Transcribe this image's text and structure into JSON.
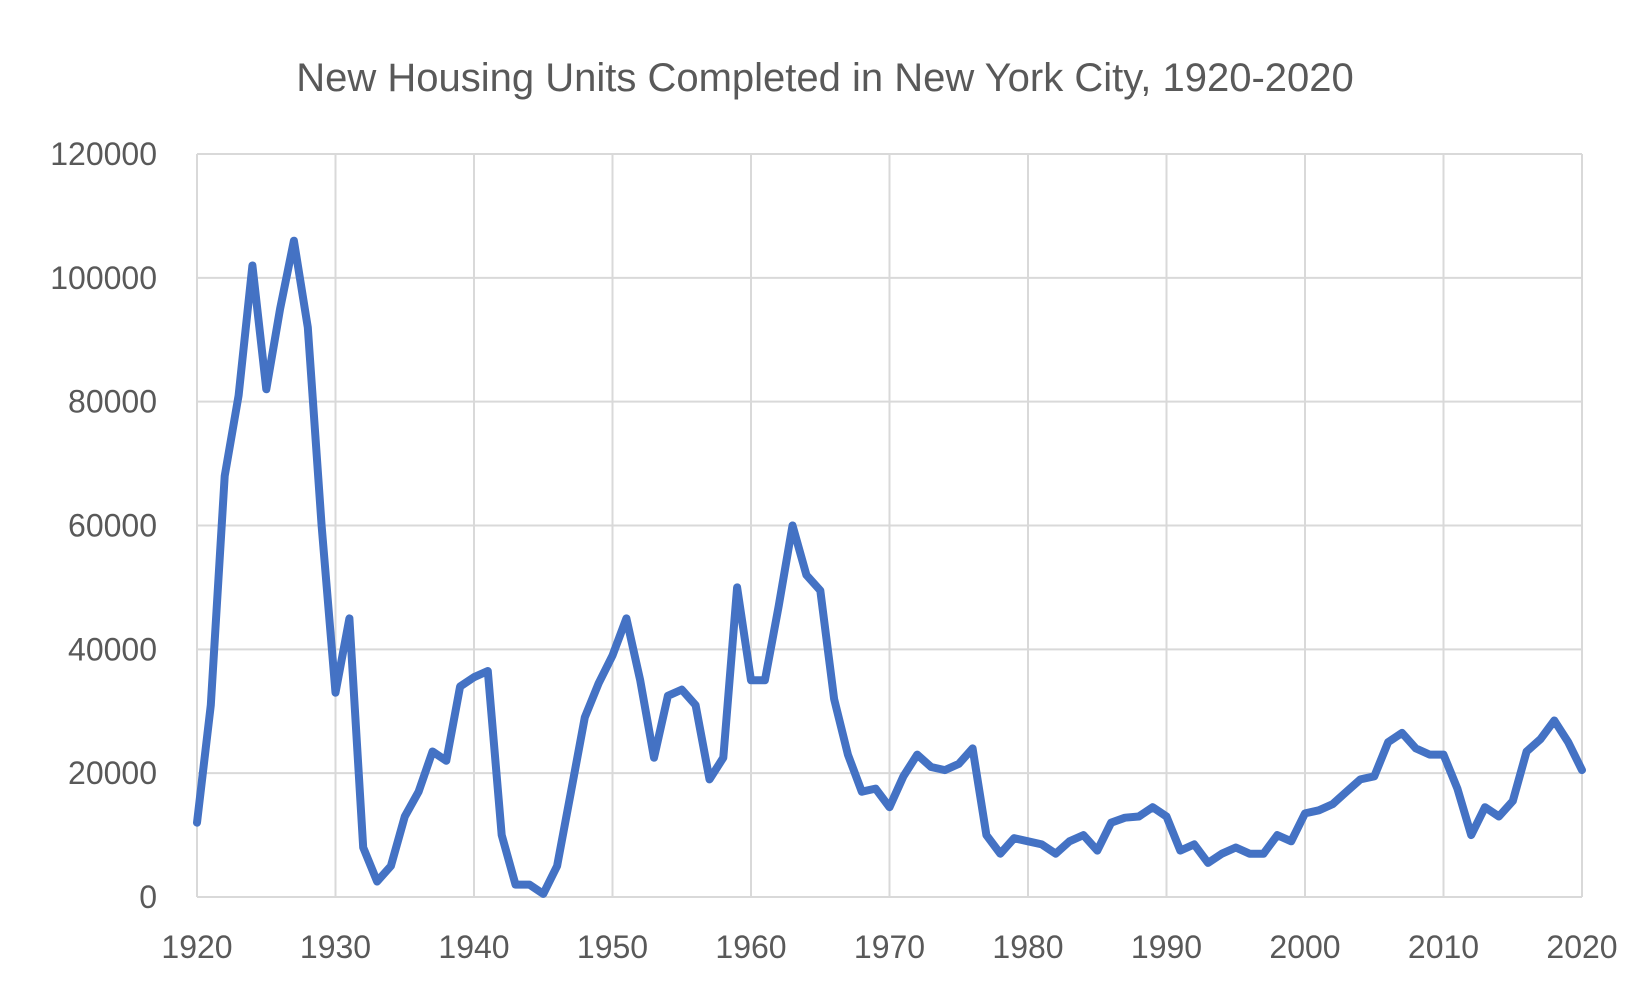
{
  "chart_data": {
    "type": "line",
    "title": "New Housing Units Completed in New York City, 1920-2020",
    "xlabel": "",
    "ylabel": "",
    "xlim": [
      1920,
      2020
    ],
    "ylim": [
      0,
      120000
    ],
    "x_ticks": [
      "1920",
      "1930",
      "1940",
      "1950",
      "1960",
      "1970",
      "1980",
      "1990",
      "2000",
      "2010",
      "2020"
    ],
    "y_ticks": [
      "0",
      "20000",
      "40000",
      "60000",
      "80000",
      "100000",
      "120000"
    ],
    "grid": true,
    "legend": "none",
    "series_color": "#4472c4",
    "grid_color": "#d9d9d9",
    "text_color": "#595959",
    "series": [
      {
        "x": [
          1920,
          1921,
          1922,
          1923,
          1924,
          1925,
          1926,
          1927,
          1928,
          1929,
          1930,
          1931,
          1932,
          1933,
          1934,
          1935,
          1936,
          1937,
          1938,
          1939,
          1940,
          1941,
          1942,
          1943,
          1944,
          1945,
          1946,
          1947,
          1948,
          1949,
          1950,
          1951,
          1952,
          1953,
          1954,
          1955,
          1956,
          1957,
          1958,
          1959,
          1960,
          1961,
          1962,
          1963,
          1964,
          1965,
          1966,
          1967,
          1968,
          1969,
          1970,
          1971,
          1972,
          1973,
          1974,
          1975,
          1976,
          1977,
          1978,
          1979,
          1980,
          1981,
          1982,
          1983,
          1984,
          1985,
          1986,
          1987,
          1988,
          1989,
          1990,
          1991,
          1992,
          1993,
          1994,
          1995,
          1996,
          1997,
          1998,
          1999,
          2000,
          2001,
          2002,
          2003,
          2004,
          2005,
          2006,
          2007,
          2008,
          2009,
          2010,
          2011,
          2012,
          2013,
          2014,
          2015,
          2016,
          2017,
          2018,
          2019,
          2020
        ],
        "values": [
          12000,
          31000,
          68000,
          81000,
          102000,
          82000,
          95000,
          106000,
          92000,
          60000,
          33000,
          45000,
          8000,
          2500,
          5000,
          13000,
          17000,
          23500,
          22000,
          34000,
          35500,
          36500,
          10000,
          2000,
          2000,
          500,
          5000,
          17000,
          29000,
          34500,
          39000,
          45000,
          35000,
          22500,
          32500,
          33500,
          31000,
          19000,
          22500,
          50000,
          35000,
          35000,
          47000,
          60000,
          52000,
          49500,
          32000,
          23000,
          17000,
          17500,
          14500,
          19500,
          23000,
          21000,
          20500,
          21500,
          24000,
          10000,
          7000,
          9500,
          9000,
          8500,
          7000,
          9000,
          10000,
          7500,
          12000,
          12800,
          13000,
          14500,
          13000,
          7500,
          8500,
          5500,
          7000,
          8000,
          7000,
          7000,
          10000,
          9000,
          13500,
          14000,
          15000,
          17000,
          19000,
          19500,
          25000,
          26500,
          24000,
          23000,
          23000,
          17500,
          10000,
          14500,
          13000,
          15500,
          23500,
          25500,
          28500,
          25000,
          20500
        ]
      }
    ]
  }
}
